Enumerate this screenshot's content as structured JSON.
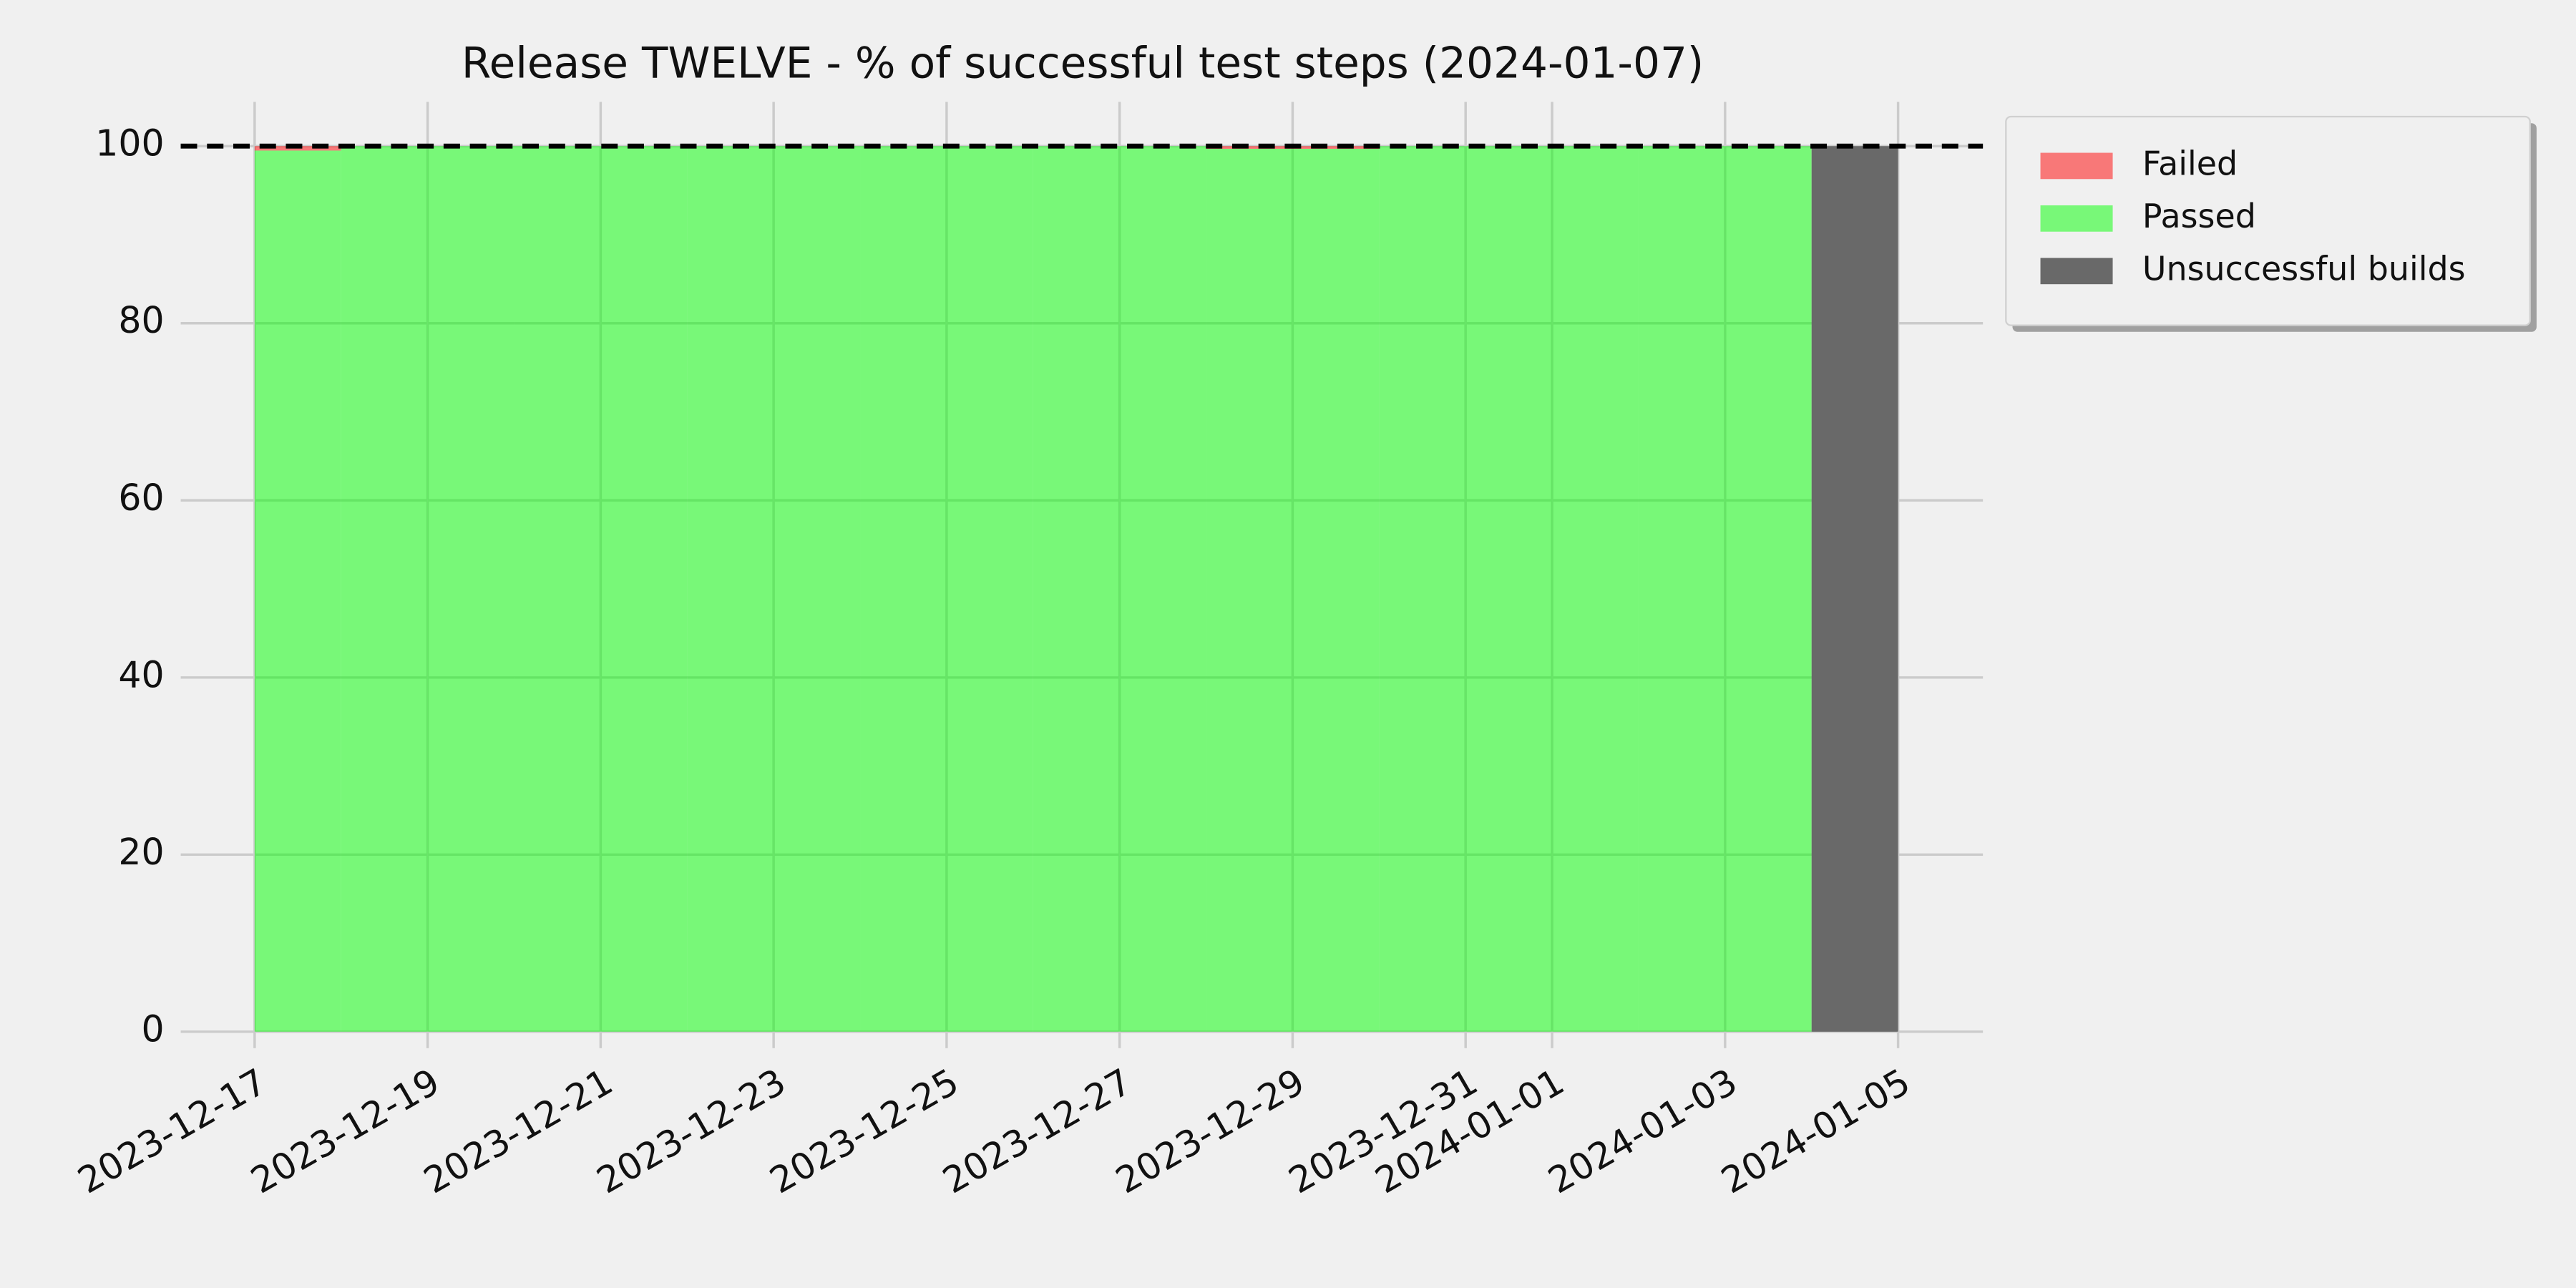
{
  "chart_data": {
    "type": "stacked_step_area",
    "title": "Release TWELVE - % of successful test steps (2024-01-07)",
    "x": [
      "2023-12-17",
      "2023-12-18",
      "2023-12-19",
      "2023-12-20",
      "2023-12-21",
      "2023-12-22",
      "2023-12-23",
      "2023-12-24",
      "2023-12-25",
      "2023-12-26",
      "2023-12-27",
      "2023-12-28",
      "2023-12-29",
      "2023-12-30",
      "2023-12-31",
      "2024-01-01",
      "2024-01-02",
      "2024-01-03",
      "2024-01-04"
    ],
    "series": [
      {
        "name": "Passed",
        "color": "#00ff00",
        "values": [
          99.5,
          100,
          100,
          100,
          100,
          100,
          100,
          100,
          100,
          100,
          100,
          99.7,
          99.7,
          100,
          100,
          100,
          100,
          100,
          0
        ]
      },
      {
        "name": "Failed",
        "color": "#ff0000",
        "values": [
          0.5,
          0,
          0,
          0,
          0,
          0,
          0,
          0,
          0,
          0,
          0,
          0.3,
          0.3,
          0,
          0,
          0,
          0,
          0,
          0
        ]
      },
      {
        "name": "Unsuccessful builds",
        "color": "#696969",
        "values": [
          0,
          0,
          0,
          0,
          0,
          0,
          0,
          0,
          0,
          0,
          0,
          0,
          0,
          0,
          0,
          0,
          0,
          0,
          100
        ]
      }
    ],
    "legend_order": [
      1,
      0,
      2
    ],
    "target": 100,
    "ylim": [
      0,
      105
    ],
    "yticks": [
      0,
      20,
      40,
      60,
      80,
      100
    ],
    "xticks": [
      "2023-12-17",
      "2023-12-19",
      "2023-12-21",
      "2023-12-23",
      "2023-12-25",
      "2023-12-27",
      "2023-12-29",
      "2023-12-31",
      "2024-01-01",
      "2024-01-03",
      "2024-01-05"
    ],
    "grid": true,
    "legend": "outside upper right"
  }
}
